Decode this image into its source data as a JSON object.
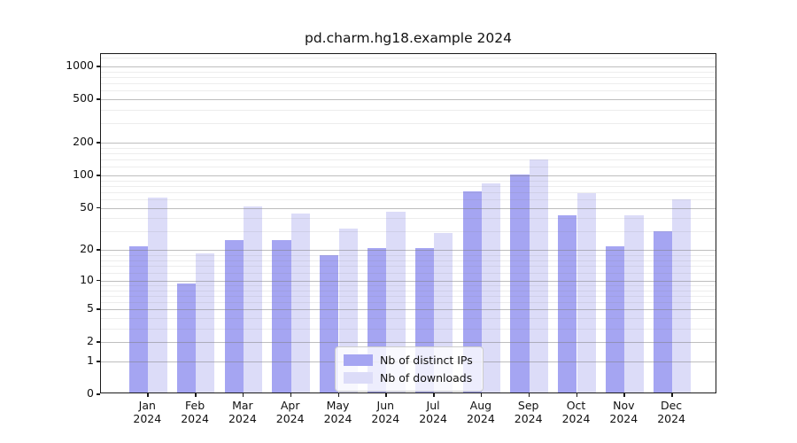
{
  "title": "pd.charm.hg18.example 2024",
  "chart_data": {
    "type": "bar",
    "title": "pd.charm.hg18.example 2024",
    "categories": [
      "Jan",
      "Feb",
      "Mar",
      "Apr",
      "May",
      "Jun",
      "Jul",
      "Aug",
      "Sep",
      "Oct",
      "Nov",
      "Dec"
    ],
    "x_year_label": "2024",
    "series": [
      {
        "name": "Nb of distinct IPs",
        "color": "#a5a5f2",
        "values": [
          21,
          9,
          24,
          24,
          17,
          20,
          20,
          68,
          98,
          41,
          21,
          29
        ]
      },
      {
        "name": "Nb of downloads",
        "color": "#dcdcf8",
        "values": [
          60,
          18,
          50,
          43,
          31,
          44,
          28,
          82,
          134,
          66,
          41,
          58
        ]
      }
    ],
    "yscale": "log1p",
    "ylim": [
      0,
      1300
    ],
    "y_ticks": [
      0,
      1,
      2,
      5,
      10,
      20,
      50,
      100,
      200,
      500,
      1000
    ],
    "y_minor_ticks": [
      3,
      4,
      6,
      7,
      8,
      9,
      12,
      14,
      16,
      18,
      30,
      40,
      60,
      70,
      80,
      90,
      120,
      140,
      160,
      180,
      300,
      400,
      600,
      700,
      800,
      900,
      1200
    ],
    "grid": "on",
    "legend_position": "lower center",
    "xlabel": "",
    "ylabel": ""
  }
}
